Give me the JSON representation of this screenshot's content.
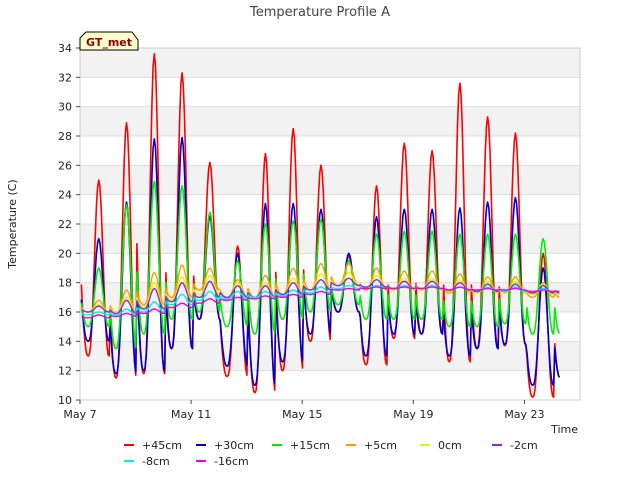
{
  "chart_data": {
    "type": "line",
    "title": "Temperature Profile A",
    "xlabel": "Time",
    "ylabel": "Temperature (C)",
    "badge": "GT_met",
    "ylim": [
      10,
      34
    ],
    "y_ticks": [
      10,
      12,
      14,
      16,
      18,
      20,
      22,
      24,
      26,
      28,
      30,
      32,
      34
    ],
    "xlim": [
      "2024-05-07",
      "2024-05-25"
    ],
    "x_ticks": [
      {
        "label": "May 7",
        "date": "2024-05-07"
      },
      {
        "label": "May 11",
        "date": "2024-05-11"
      },
      {
        "label": "May 15",
        "date": "2024-05-15"
      },
      {
        "label": "May 19",
        "date": "2024-05-19"
      },
      {
        "label": "May 23",
        "date": "2024-05-23"
      }
    ],
    "grid": true,
    "legend_position": "bottom",
    "x": [
      "2024-05-07",
      "2024-05-08",
      "2024-05-09",
      "2024-05-10",
      "2024-05-11",
      "2024-05-12",
      "2024-05-13",
      "2024-05-14",
      "2024-05-15",
      "2024-05-16",
      "2024-05-17",
      "2024-05-18",
      "2024-05-19",
      "2024-05-20",
      "2024-05-21",
      "2024-05-22",
      "2024-05-23",
      "2024-05-24"
    ],
    "series": [
      {
        "name": "+45cm",
        "color": "#ff0000",
        "daily_min": [
          13.0,
          11.5,
          11.8,
          13.5,
          15.5,
          11.6,
          10.5,
          12.0,
          14.0,
          16.0,
          12.4,
          14.2,
          14.5,
          12.6,
          13.5,
          13.7,
          10.2,
          11.5
        ],
        "daily_max": [
          25.0,
          28.9,
          33.6,
          32.3,
          26.2,
          20.5,
          26.8,
          28.5,
          26.0,
          19.8,
          24.6,
          27.5,
          27.0,
          31.6,
          29.3,
          28.2,
          20.0,
          20.0
        ]
      },
      {
        "name": "+30cm",
        "color": "#0000cc",
        "daily_min": [
          14.0,
          11.8,
          12.0,
          13.5,
          15.5,
          12.3,
          11.0,
          12.6,
          14.5,
          16.0,
          13.0,
          14.5,
          14.5,
          13.0,
          13.5,
          13.8,
          11.0,
          11.5
        ],
        "daily_max": [
          21.0,
          23.5,
          27.8,
          27.9,
          22.5,
          20.0,
          23.4,
          23.4,
          23.0,
          20.0,
          22.5,
          23.0,
          23.0,
          23.1,
          23.5,
          23.8,
          19.0,
          19.0
        ]
      },
      {
        "name": "+15cm",
        "color": "#00ee00",
        "daily_min": [
          15.0,
          13.5,
          14.5,
          15.5,
          16.0,
          15.0,
          14.5,
          15.5,
          16.0,
          16.5,
          15.5,
          15.5,
          15.5,
          15.0,
          15.0,
          15.2,
          14.5,
          14.5
        ],
        "daily_max": [
          19.0,
          23.3,
          24.9,
          24.6,
          22.8,
          19.5,
          22.0,
          22.2,
          22.3,
          19.5,
          21.3,
          21.5,
          21.5,
          21.3,
          21.3,
          21.3,
          21.0,
          21.0
        ]
      },
      {
        "name": "+5cm",
        "color": "#ff9900",
        "daily_min": [
          16.0,
          16.0,
          16.5,
          17.0,
          17.5,
          17.0,
          17.0,
          17.2,
          17.5,
          17.8,
          17.5,
          17.5,
          17.5,
          17.3,
          17.3,
          17.3,
          17.0,
          17.0
        ],
        "daily_max": [
          16.8,
          17.5,
          18.7,
          19.2,
          19.0,
          18.2,
          18.5,
          19.0,
          19.3,
          19.3,
          19.0,
          18.8,
          18.8,
          18.6,
          18.4,
          18.4,
          18.0,
          18.0
        ]
      },
      {
        "name": "0cm",
        "color": "#eeee00",
        "daily_min": [
          16.0,
          16.0,
          16.3,
          16.8,
          17.2,
          17.0,
          17.0,
          17.2,
          17.5,
          17.8,
          17.6,
          17.5,
          17.5,
          17.4,
          17.3,
          17.3,
          17.2,
          17.2
        ],
        "daily_max": [
          16.5,
          17.0,
          18.0,
          18.4,
          18.5,
          18.0,
          18.0,
          18.3,
          18.6,
          18.7,
          18.5,
          18.3,
          18.3,
          18.2,
          18.1,
          18.1,
          17.9,
          17.9
        ]
      },
      {
        "name": "-2cm",
        "color": "#8a2be2",
        "daily_min": [
          16.0,
          15.9,
          16.2,
          16.7,
          17.0,
          17.0,
          17.0,
          17.2,
          17.5,
          17.8,
          17.7,
          17.6,
          17.6,
          17.5,
          17.4,
          17.4,
          17.3,
          17.3
        ],
        "daily_max": [
          16.4,
          16.8,
          17.6,
          18.0,
          18.1,
          17.8,
          17.8,
          18.0,
          18.2,
          18.3,
          18.2,
          18.1,
          18.1,
          18.0,
          17.9,
          17.9,
          17.8,
          17.8
        ]
      },
      {
        "name": "-8cm",
        "color": "#00eeee",
        "daily_min": [
          15.8,
          15.8,
          16.0,
          16.5,
          16.8,
          16.9,
          17.0,
          17.1,
          17.3,
          17.6,
          17.6,
          17.6,
          17.6,
          17.5,
          17.5,
          17.4,
          17.4,
          17.4
        ],
        "daily_max": [
          16.0,
          16.2,
          16.7,
          17.2,
          17.4,
          17.4,
          17.4,
          17.5,
          17.7,
          17.8,
          17.8,
          17.8,
          17.8,
          17.7,
          17.7,
          17.7,
          17.6,
          17.6
        ]
      },
      {
        "name": "-16cm",
        "color": "#ee00ee",
        "daily_min": [
          15.6,
          15.7,
          15.9,
          16.3,
          16.6,
          16.8,
          16.9,
          17.0,
          17.2,
          17.5,
          17.6,
          17.6,
          17.6,
          17.5,
          17.5,
          17.5,
          17.4,
          17.4
        ],
        "daily_max": [
          15.8,
          15.9,
          16.2,
          16.6,
          16.9,
          17.0,
          17.1,
          17.2,
          17.4,
          17.6,
          17.7,
          17.7,
          17.7,
          17.7,
          17.6,
          17.6,
          17.5,
          17.5
        ]
      }
    ]
  }
}
